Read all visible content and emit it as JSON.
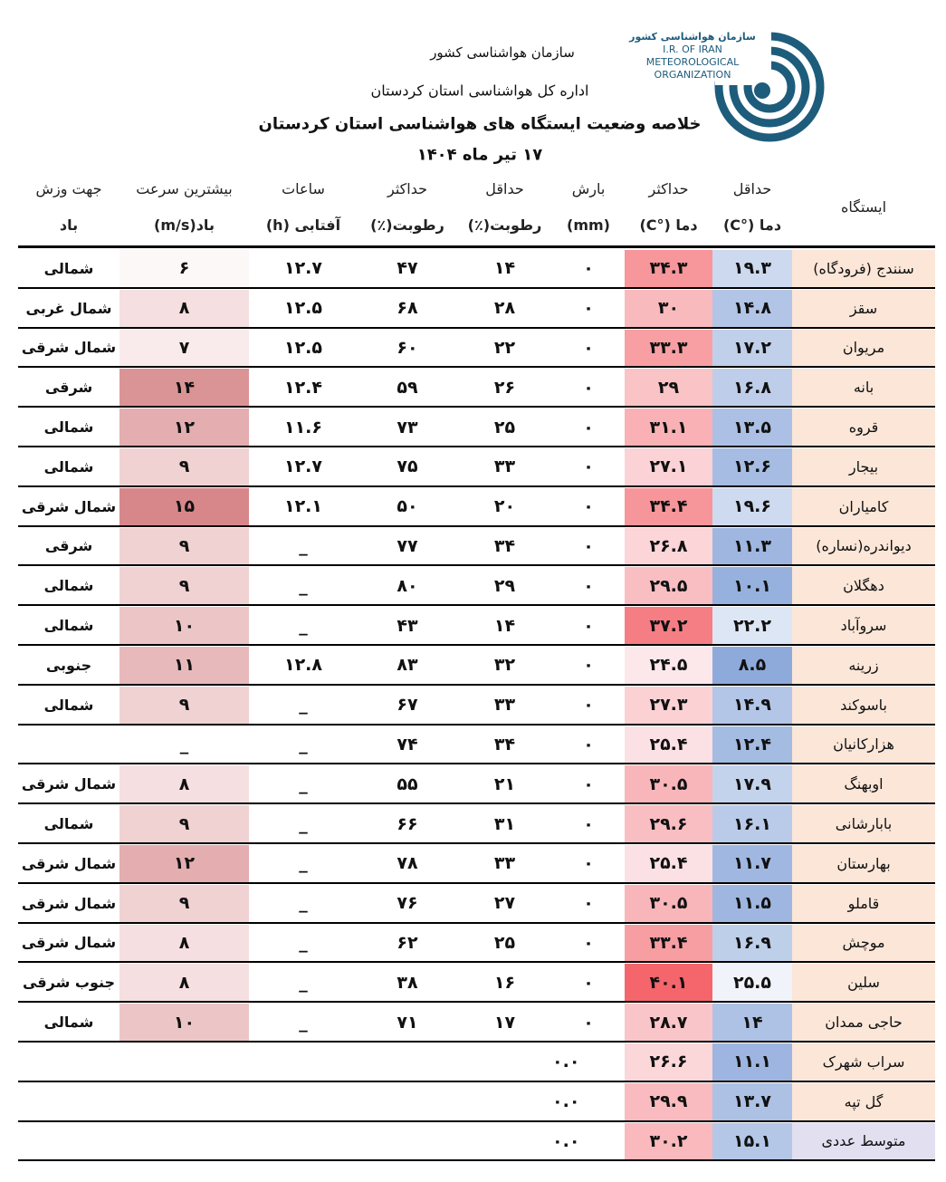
{
  "logo": {
    "name_fa": "سازمان هواشناسی کشور",
    "line1": "I.R. OF IRAN",
    "line2": "METEOROLOGICAL",
    "line3": "ORGANIZATION"
  },
  "header": {
    "org": "سازمان هواشناسی کشور",
    "office": "اداره کل هواشناسی استان کردستان",
    "title": "خلاصه وضعیت ایستگاه های هواشناسی استان کردستان",
    "date": "۱۷ تیر ماه ۱۴۰۴"
  },
  "table": {
    "columns": [
      [
        "ایستگاه"
      ],
      [
        "حداقل",
        "دما (°C)"
      ],
      [
        "حداکثر",
        "دما (°C)"
      ],
      [
        "بارش",
        "(mm)"
      ],
      [
        "حداقل",
        "رطوبت(٪)"
      ],
      [
        "حداکثر",
        "رطوبت(٪)"
      ],
      [
        "ساعات",
        "آفتابی (h)"
      ],
      [
        "بیشترین سرعت",
        "باد(m/s)"
      ],
      [
        "جهت وزش",
        "باد"
      ]
    ],
    "rows": [
      [
        "سنندج (فرودگاه)",
        "۱۹.۳",
        "۳۴.۳",
        "۰",
        "۱۴",
        "۴۷",
        "۱۲.۷",
        "۶",
        "شمالی"
      ],
      [
        "سقز",
        "۱۴.۸",
        "۳۰",
        "۰",
        "۲۸",
        "۶۸",
        "۱۲.۵",
        "۸",
        "شمال غربی"
      ],
      [
        "مریوان",
        "۱۷.۲",
        "۳۳.۳",
        "۰",
        "۲۲",
        "۶۰",
        "۱۲.۵",
        "۷",
        "شمال شرقی"
      ],
      [
        "بانه",
        "۱۶.۸",
        "۲۹",
        "۰",
        "۲۶",
        "۵۹",
        "۱۲.۴",
        "۱۴",
        "شرقی"
      ],
      [
        "قروه",
        "۱۳.۵",
        "۳۱.۱",
        "۰",
        "۲۵",
        "۷۳",
        "۱۱.۶",
        "۱۲",
        "شمالی"
      ],
      [
        "بیجار",
        "۱۲.۶",
        "۲۷.۱",
        "۰",
        "۳۳",
        "۷۵",
        "۱۲.۷",
        "۹",
        "شمالی"
      ],
      [
        "کامیاران",
        "۱۹.۶",
        "۳۴.۴",
        "۰",
        "۲۰",
        "۵۰",
        "۱۲.۱",
        "۱۵",
        "شمال شرقی"
      ],
      [
        "دیواندره(نساره)",
        "۱۱.۳",
        "۲۶.۸",
        "۰",
        "۳۴",
        "۷۷",
        "_",
        "۹",
        "شرقی"
      ],
      [
        "دهگلان",
        "۱۰.۱",
        "۲۹.۵",
        "۰",
        "۲۹",
        "۸۰",
        "_",
        "۹",
        "شمالی"
      ],
      [
        "سروآباد",
        "۲۲.۲",
        "۳۷.۲",
        "۰",
        "۱۴",
        "۴۳",
        "_",
        "۱۰",
        "شمالی"
      ],
      [
        "زرینه",
        "۸.۵",
        "۲۴.۵",
        "۰",
        "۳۲",
        "۸۳",
        "۱۲.۸",
        "۱۱",
        "جنوبی"
      ],
      [
        "باسوکند",
        "۱۴.۹",
        "۲۷.۳",
        "۰",
        "۳۳",
        "۶۷",
        "_",
        "۹",
        "شمالی"
      ],
      [
        "هزارکانیان",
        "۱۲.۴",
        "۲۵.۴",
        "۰",
        "۳۴",
        "۷۴",
        "_",
        "_",
        null
      ],
      [
        "اوبهنگ",
        "۱۷.۹",
        "۳۰.۵",
        "۰",
        "۲۱",
        "۵۵",
        "_",
        "۸",
        "شمال شرقی"
      ],
      [
        "بابارشانی",
        "۱۶.۱",
        "۲۹.۶",
        "۰",
        "۳۱",
        "۶۶",
        "_",
        "۹",
        "شمالی"
      ],
      [
        "بهارستان",
        "۱۱.۷",
        "۲۵.۴",
        "۰",
        "۳۳",
        "۷۸",
        "_",
        "۱۲",
        "شمال شرقی"
      ],
      [
        "قاملو",
        "۱۱.۵",
        "۳۰.۵",
        "۰",
        "۲۷",
        "۷۶",
        "_",
        "۹",
        "شمال شرقی"
      ],
      [
        "موچش",
        "۱۶.۹",
        "۳۳.۴",
        "۰",
        "۲۵",
        "۶۲",
        "_",
        "۸",
        "شمال شرقی"
      ],
      [
        "سلین",
        "۲۵.۵",
        "۴۰.۱",
        "۰",
        "۱۶",
        "۳۸",
        "_",
        "۸",
        "جنوب شرقی"
      ],
      [
        "حاجی ممدان",
        "۱۴",
        "۲۸.۷",
        "۰",
        "۱۷",
        "۷۱",
        "_",
        "۱۰",
        "شمالی"
      ],
      [
        "سراب شهرک",
        "۱۱.۱",
        "۲۶.۶",
        "۰.۰",
        null,
        null,
        null,
        null,
        null
      ],
      [
        "گل تپه",
        "۱۳.۷",
        "۲۹.۹",
        "۰.۰",
        null,
        null,
        null,
        null,
        null
      ],
      [
        "متوسط عددی",
        "۱۵.۱",
        "۳۰.۲",
        "۰.۰",
        null,
        null,
        null,
        null,
        null
      ]
    ]
  }
}
